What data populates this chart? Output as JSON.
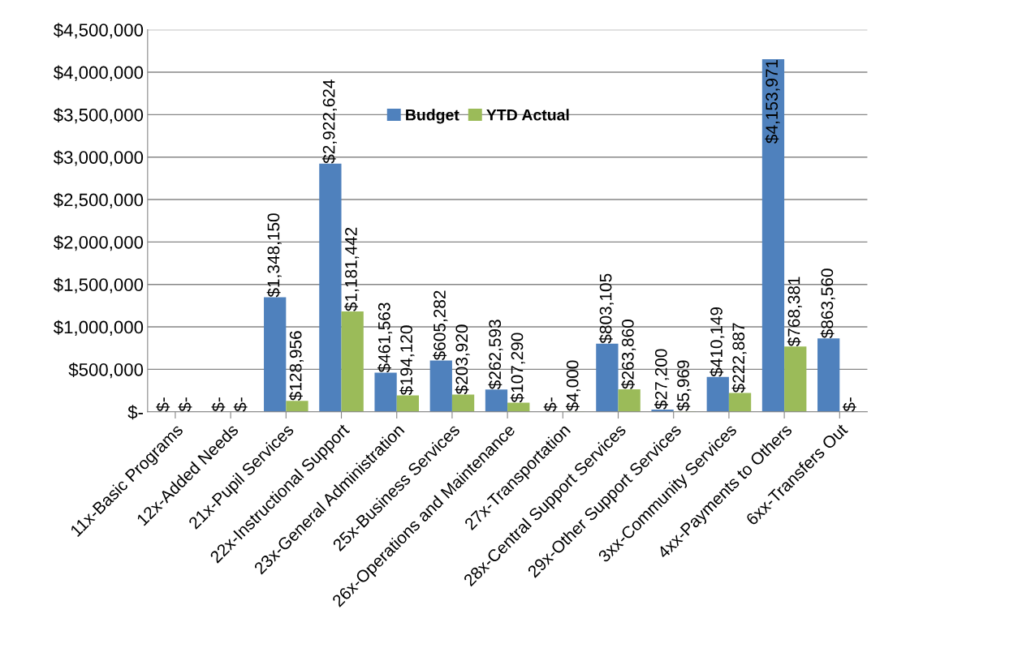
{
  "chart_data": {
    "type": "bar",
    "categories": [
      "11x-Basic Programs",
      "12x-Added Needs",
      "21x-Pupil Services",
      "22x-Instructional Support",
      "23x-General Administration",
      "25x-Business Services",
      "26x-Operations and Maintenance",
      "27x-Transportation",
      "28x-Central Support Services",
      "29x-Other Support Services",
      "3xx-Community Services",
      "4xx-Payments to Others",
      "6xx-Transfers Out"
    ],
    "series": [
      {
        "name": "Budget",
        "color": "#4f81bd",
        "values": [
          0,
          0,
          1348150,
          2922624,
          461563,
          605282,
          262593,
          0,
          803105,
          27200,
          410149,
          4153971,
          863560
        ],
        "value_labels": [
          "$-",
          "$-",
          "$1,348,150",
          "$2,922,624",
          "$461,563",
          "$605,282",
          "$262,593",
          "$-",
          "$803,105",
          "$27,200",
          "$410,149",
          "$4,153,971",
          "$863,560"
        ]
      },
      {
        "name": "YTD Actual",
        "color": "#9bbb59",
        "values": [
          0,
          0,
          128956,
          1181442,
          194120,
          203920,
          107290,
          4000,
          263860,
          5969,
          222887,
          768381,
          0
        ],
        "value_labels": [
          "$-",
          "$-",
          "$128,956",
          "$1,181,442",
          "$194,120",
          "$203,920",
          "$107,290",
          "$4,000",
          "$263,860",
          "$5,969",
          "$222,887",
          "$768,381",
          "$-"
        ]
      }
    ],
    "ylim": [
      0,
      4500000
    ],
    "yticks": [
      {
        "value": 0,
        "label": "$-"
      },
      {
        "value": 500000,
        "label": "$500,000"
      },
      {
        "value": 1000000,
        "label": "$1,000,000"
      },
      {
        "value": 1500000,
        "label": "$1,500,000"
      },
      {
        "value": 2000000,
        "label": "$2,000,000"
      },
      {
        "value": 2500000,
        "label": "$2,500,000"
      },
      {
        "value": 3000000,
        "label": "$3,000,000"
      },
      {
        "value": 3500000,
        "label": "$3,500,000"
      },
      {
        "value": 4000000,
        "label": "$4,000,000"
      },
      {
        "value": 4500000,
        "label": "$4,500,000"
      }
    ],
    "grid": "y",
    "legend": "top"
  }
}
